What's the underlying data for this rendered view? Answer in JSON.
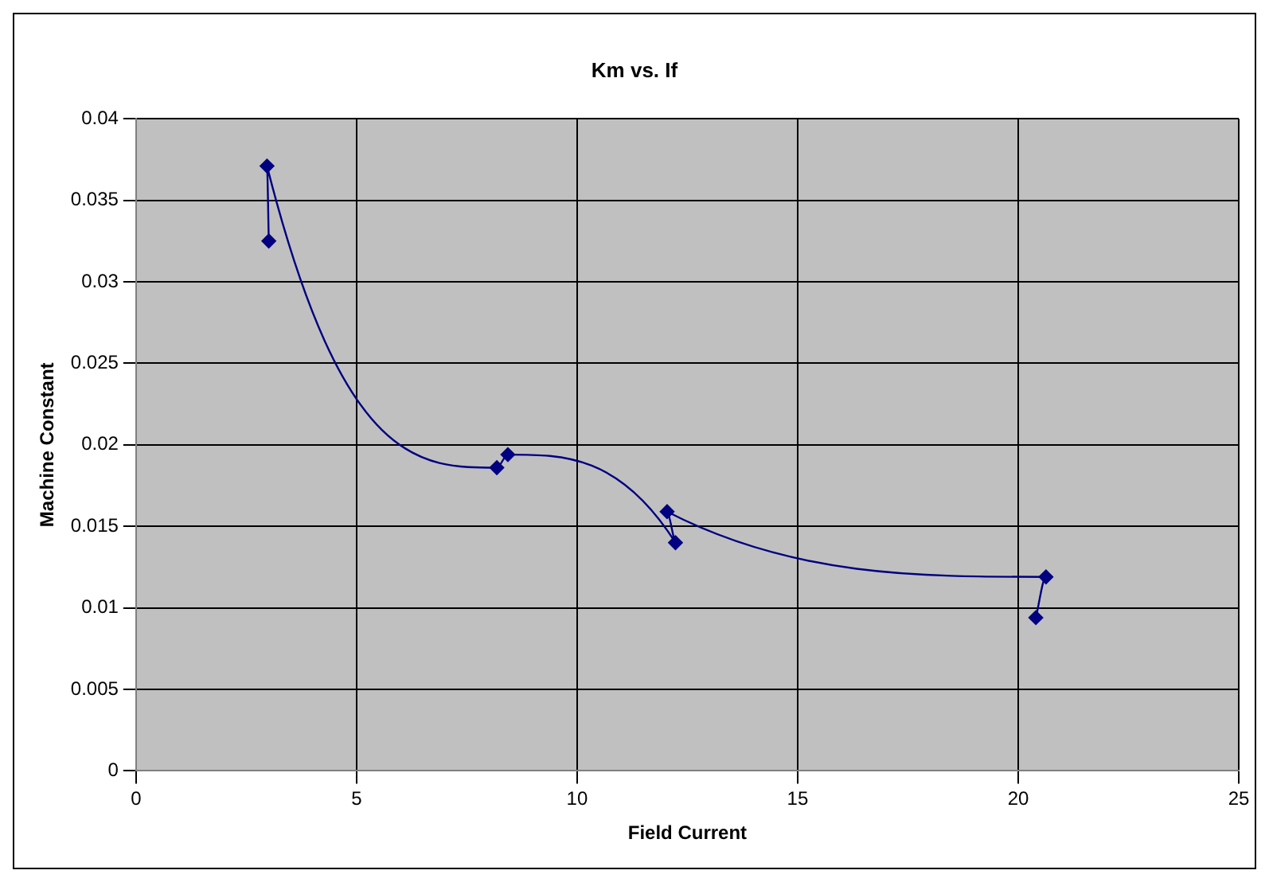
{
  "chart_data": {
    "type": "line",
    "title": "Km vs. If",
    "xlabel": "Field Current",
    "ylabel": "Machine Constant",
    "x": [
      3.01,
      2.97,
      8.18,
      8.43,
      12.23,
      12.04,
      20.63,
      20.4
    ],
    "values": [
      0.0325,
      0.0371,
      0.0186,
      0.0194,
      0.014,
      0.0159,
      0.0119,
      0.0094
    ],
    "color": "#000080",
    "marker": "diamond",
    "line_style": "solid",
    "xlim": [
      0,
      25
    ],
    "xticks": [
      0,
      5,
      10,
      15,
      20,
      25
    ],
    "ylim": [
      0,
      0.04
    ],
    "yticks": [
      0,
      0.005,
      0.01,
      0.015,
      0.02,
      0.025,
      0.03,
      0.035,
      0.04
    ],
    "grid": true,
    "legend": false
  }
}
